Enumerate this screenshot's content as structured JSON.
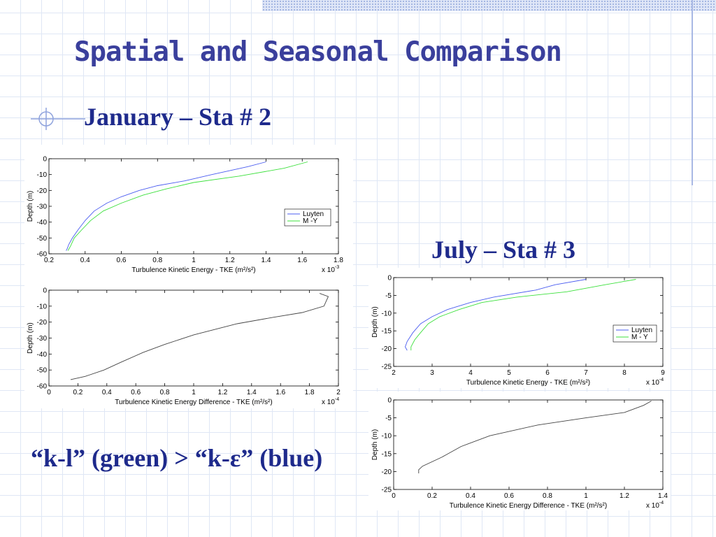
{
  "slide": {
    "title": "Spatial and Seasonal Comparison",
    "january_label": "January – Sta # 2",
    "july_label": "July – Sta # 3",
    "note": "“k-l” (green) > “k-ε” (blue)"
  },
  "colors": {
    "title": "#3a3f9c",
    "text": "#1e2a8c",
    "luyten": "#4a5cf0",
    "my": "#3ce03c",
    "diff": "#444444"
  },
  "chart_data": [
    {
      "type": "line",
      "xlabel": "Turbulence Kinetic Energy - TKE (m²/s²)",
      "ylabel": "Depth (m)",
      "xlim": [
        0.2,
        1.8
      ],
      "ylim": [
        -60,
        0
      ],
      "xticks": [
        "0.2",
        "0.4",
        "0.6",
        "0.8",
        "1",
        "1.2",
        "1.4",
        "1.6",
        "1.8"
      ],
      "yticks": [
        "0",
        "-10",
        "-20",
        "-30",
        "-40",
        "-50",
        "-60"
      ],
      "scale_label": "x 10",
      "scale_exp": "-3",
      "legend_position": "right",
      "series": [
        {
          "name": "Luyten",
          "color": "#4a5cf0",
          "x": [
            1.4,
            1.3,
            1.1,
            0.95,
            0.8,
            0.7,
            0.6,
            0.52,
            0.45,
            0.4,
            0.36,
            0.33,
            0.31,
            0.3,
            0.295
          ],
          "y": [
            -2,
            -5,
            -10,
            -14,
            -17,
            -20,
            -24,
            -28,
            -33,
            -39,
            -45,
            -50,
            -54,
            -57,
            -58
          ]
        },
        {
          "name": "M -Y",
          "color": "#3ce03c",
          "x": [
            1.63,
            1.5,
            1.25,
            1.0,
            0.85,
            0.72,
            0.6,
            0.5,
            0.43,
            0.38,
            0.34,
            0.32,
            0.305
          ],
          "y": [
            -2,
            -6,
            -11,
            -15,
            -19,
            -23,
            -28,
            -33,
            -39,
            -45,
            -50,
            -55,
            -58
          ]
        }
      ]
    },
    {
      "type": "line",
      "xlabel": "Turbulence Kinetic Energy Difference - TKE (m²/s²)",
      "ylabel": "Depth (m)",
      "xlim": [
        0,
        2
      ],
      "ylim": [
        -60,
        0
      ],
      "xticks": [
        "0",
        "0.2",
        "0.4",
        "0.6",
        "0.8",
        "1",
        "1.2",
        "1.4",
        "1.6",
        "1.8",
        "2"
      ],
      "yticks": [
        "0",
        "-10",
        "-20",
        "-30",
        "-40",
        "-50",
        "-60"
      ],
      "scale_label": "x 10",
      "scale_exp": "-4",
      "series": [
        {
          "color": "#444444",
          "x": [
            1.87,
            1.93,
            1.9,
            1.75,
            1.55,
            1.3,
            1.0,
            0.8,
            0.65,
            0.5,
            0.38,
            0.25,
            0.15
          ],
          "y": [
            -2,
            -4,
            -10,
            -14,
            -17,
            -21,
            -28,
            -34,
            -39,
            -45,
            -50,
            -54,
            -56
          ]
        }
      ]
    },
    {
      "type": "line",
      "xlabel": "Turbulence Kinetic Energy - TKE (m²/s²)",
      "ylabel": "Depth (m)",
      "xlim": [
        2,
        9
      ],
      "ylim": [
        -25,
        0
      ],
      "xticks": [
        "2",
        "3",
        "4",
        "5",
        "6",
        "7",
        "8",
        "9"
      ],
      "yticks": [
        "0",
        "-5",
        "-10",
        "-15",
        "-20",
        "-25"
      ],
      "scale_label": "x 10",
      "scale_exp": "-4",
      "legend_position": "right",
      "series": [
        {
          "name": "Luyten",
          "color": "#4a5cf0",
          "x": [
            7.0,
            6.2,
            5.7,
            4.6,
            4.0,
            3.4,
            3.0,
            2.7,
            2.5,
            2.35,
            2.3,
            2.35
          ],
          "y": [
            -0.5,
            -2,
            -3.5,
            -5.5,
            -7,
            -9,
            -11,
            -13,
            -15.5,
            -18,
            -19.5,
            -20.5
          ]
        },
        {
          "name": "M  - Y",
          "color": "#3ce03c",
          "x": [
            8.3,
            7.5,
            6.5,
            5.2,
            4.3,
            3.7,
            3.2,
            2.9,
            2.7,
            2.55,
            2.45,
            2.45
          ],
          "y": [
            -0.5,
            -2,
            -4,
            -5.5,
            -7,
            -9,
            -11,
            -13,
            -15.5,
            -17.5,
            -19.5,
            -20.5
          ]
        }
      ]
    },
    {
      "type": "line",
      "xlabel": "Turbulence Kinetic Energy Difference - TKE (m²/s²)",
      "ylabel": "Depth (m)",
      "xlim": [
        0,
        1.4
      ],
      "ylim": [
        -25,
        0
      ],
      "xticks": [
        "0",
        "0.2",
        "0.4",
        "0.6",
        "0.8",
        "1",
        "1.2",
        "1.4"
      ],
      "yticks": [
        "0",
        "-5",
        "-10",
        "-15",
        "-20",
        "-25"
      ],
      "scale_label": "x 10",
      "scale_exp": "-4",
      "series": [
        {
          "color": "#444444",
          "x": [
            1.34,
            1.3,
            1.2,
            1.0,
            0.75,
            0.5,
            0.35,
            0.25,
            0.15,
            0.13,
            0.13
          ],
          "y": [
            -0.3,
            -1.5,
            -3.5,
            -5,
            -7,
            -10,
            -13,
            -16,
            -18.5,
            -19.5,
            -20.5
          ]
        }
      ]
    }
  ]
}
